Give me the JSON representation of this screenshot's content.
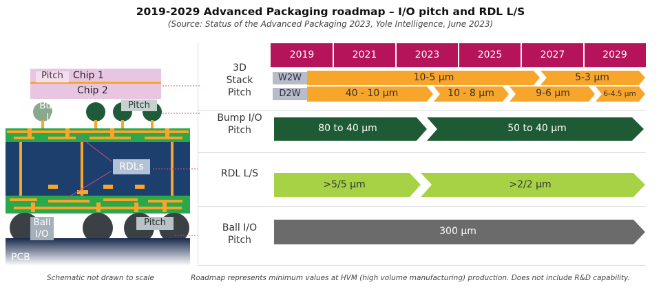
{
  "title": "2019-2029 Advanced Packaging roadmap – I/O pitch and RDL L/S",
  "subtitle": "(Source: Status of the Advanced Packaging 2023, Yole Intelligence, June 2023)",
  "years": [
    "2019",
    "2021",
    "2023",
    "2025",
    "2027",
    "2029"
  ],
  "rows": {
    "stack": {
      "label": "3D\nStack\nPitch"
    },
    "bump": {
      "label": "Bump I/O\nPitch"
    },
    "rdl": {
      "label": "RDL L/S"
    },
    "ball": {
      "label": "Ball I/O\nPitch"
    }
  },
  "bars": {
    "w2w_tag": "W2W",
    "d2w_tag": "D2W",
    "w2w_1": "10-5 µm",
    "w2w_2": "5-3 µm",
    "d2w_1": "40 - 10 µm",
    "d2w_2": "10 - 8 µm",
    "d2w_3": "9-6 µm",
    "d2w_4": "6-4.5 µm",
    "bump_1": "80 to 40 µm",
    "bump_2": "50 to 40 µm",
    "rdl_1": ">5/5 µm",
    "rdl_2": ">2/2 µm",
    "ball_1": "300 µm"
  },
  "schematic": {
    "chip1": "Chip 1",
    "chip2": "Chip 2",
    "pitch": "Pitch",
    "bump_io": "Bump\nI/O",
    "rdls": "RDLs",
    "ball_io": "Ball\nI/O",
    "pcb": "PCB"
  },
  "notes": {
    "left": "Schematic not drawn to scale",
    "right": "Roadmap represents minimum values at HVM (high volume manufacturing) production. Does not include R&D capability."
  },
  "colors": {
    "magenta": "#b5135a",
    "orange": "#f7a52b",
    "dark_green": "#1e5b35",
    "light_green": "#a8d246",
    "gray": "#6b6b6b",
    "substrate": "#1c3f6e",
    "green_layer": "#2aa84a"
  }
}
